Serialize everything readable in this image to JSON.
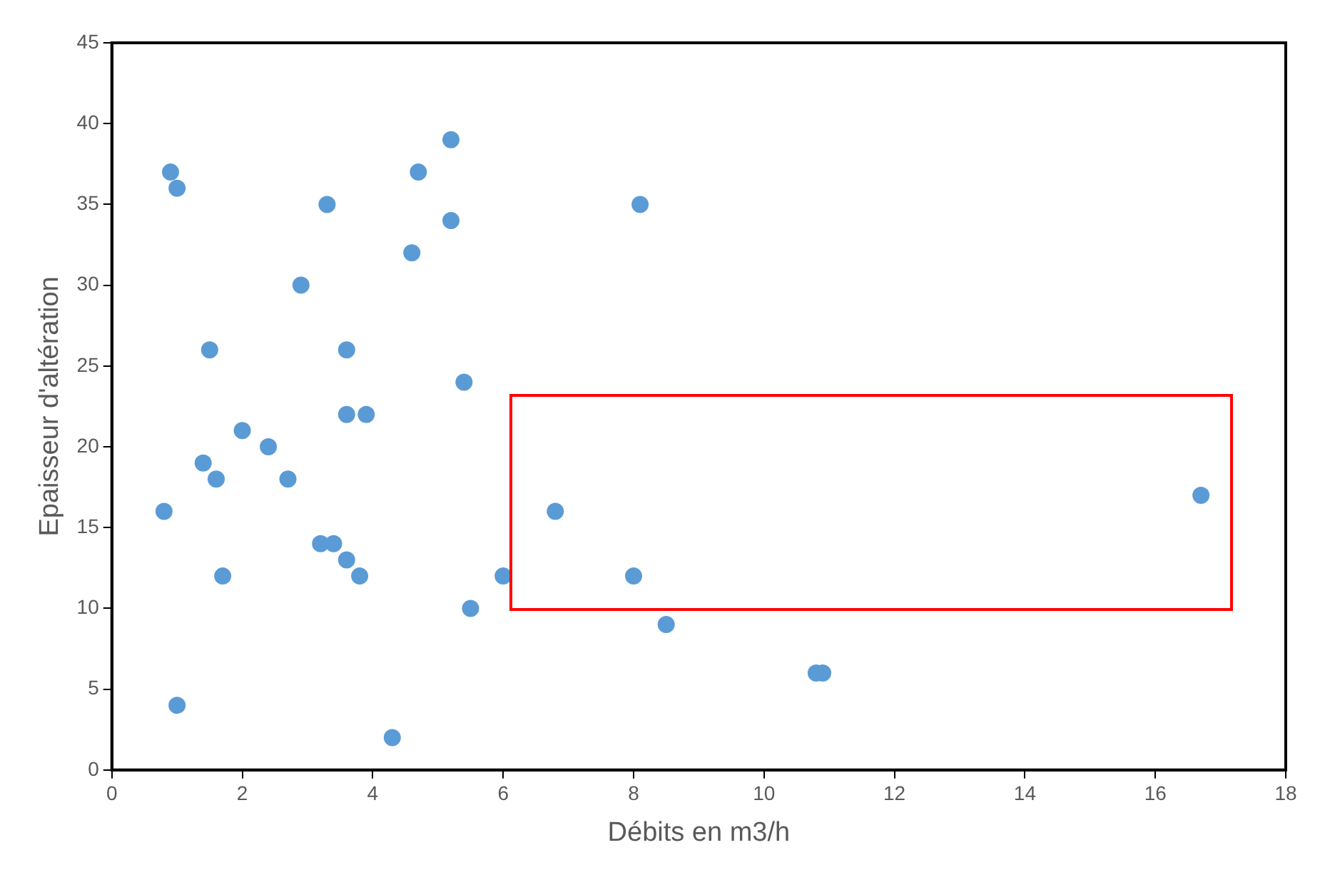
{
  "chart_data": {
    "type": "scatter",
    "xlabel": "Débits en m3/h",
    "ylabel": "Epaisseur d'altération",
    "x": [
      0.8,
      0.9,
      1.0,
      1.0,
      1.4,
      1.5,
      1.6,
      1.7,
      2.0,
      2.4,
      2.7,
      2.9,
      3.2,
      3.3,
      3.4,
      3.6,
      3.6,
      3.6,
      3.8,
      3.9,
      4.3,
      4.6,
      4.7,
      5.2,
      5.2,
      5.4,
      5.5,
      6.0,
      6.8,
      8.0,
      8.1,
      8.5,
      10.8,
      10.9,
      16.7
    ],
    "series": [
      {
        "color": "#5b9bd5",
        "values": [
          16,
          37,
          36,
          4,
          19,
          26,
          18,
          12,
          21,
          20,
          18,
          30,
          14,
          35,
          14,
          13,
          26,
          22,
          12,
          22,
          2,
          32,
          37,
          39,
          34,
          24,
          10,
          12,
          16,
          12,
          35,
          9,
          6,
          6,
          17
        ]
      }
    ],
    "xlim": [
      0,
      18
    ],
    "xticks": [
      0,
      2,
      4,
      6,
      8,
      10,
      12,
      14,
      16,
      18
    ],
    "ylim": [
      0,
      45
    ],
    "yticks": [
      0,
      5,
      10,
      15,
      20,
      25,
      30,
      35,
      40,
      45
    ],
    "grid": false,
    "legend": false,
    "marker": "circle"
  }
}
